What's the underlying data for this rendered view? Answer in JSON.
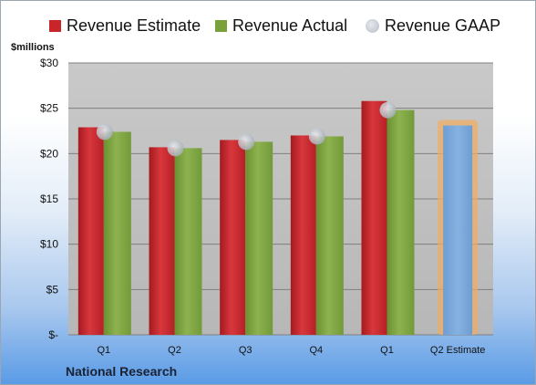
{
  "legend": [
    {
      "label": "Revenue Estimate",
      "color": "#c8252a"
    },
    {
      "label": "Revenue Actual",
      "color": "#7aa03c"
    },
    {
      "label": "Revenue GAAP",
      "color": "#c6cbd3"
    }
  ],
  "unit_label": "$millions",
  "source_label": "National Research",
  "chart_data": {
    "type": "bar",
    "categories": [
      "Q1",
      "Q2",
      "Q3",
      "Q4",
      "Q1",
      "Q2 Estimate"
    ],
    "series": [
      {
        "name": "Revenue Estimate",
        "values": [
          22.9,
          20.7,
          21.5,
          22.0,
          25.8,
          null
        ],
        "color": "#c8252a"
      },
      {
        "name": "Revenue Actual",
        "values": [
          22.4,
          20.6,
          21.3,
          21.9,
          24.8,
          null
        ],
        "color": "#7aa03c"
      },
      {
        "name": "Revenue GAAP",
        "values": [
          22.4,
          20.6,
          21.3,
          21.9,
          24.8,
          null
        ],
        "marker": "dot",
        "color": "#c6cbd3"
      },
      {
        "name": "Q2 Estimate",
        "values": [
          null,
          null,
          null,
          null,
          null,
          23.1
        ],
        "color": "#7aa6d8",
        "highlight": "#f5b46a"
      }
    ],
    "yticks": [
      "$-",
      "$5",
      "$10",
      "$15",
      "$20",
      "$25",
      "$30"
    ],
    "ylim": [
      0,
      30
    ],
    "grid": true,
    "legend_position": "top"
  }
}
